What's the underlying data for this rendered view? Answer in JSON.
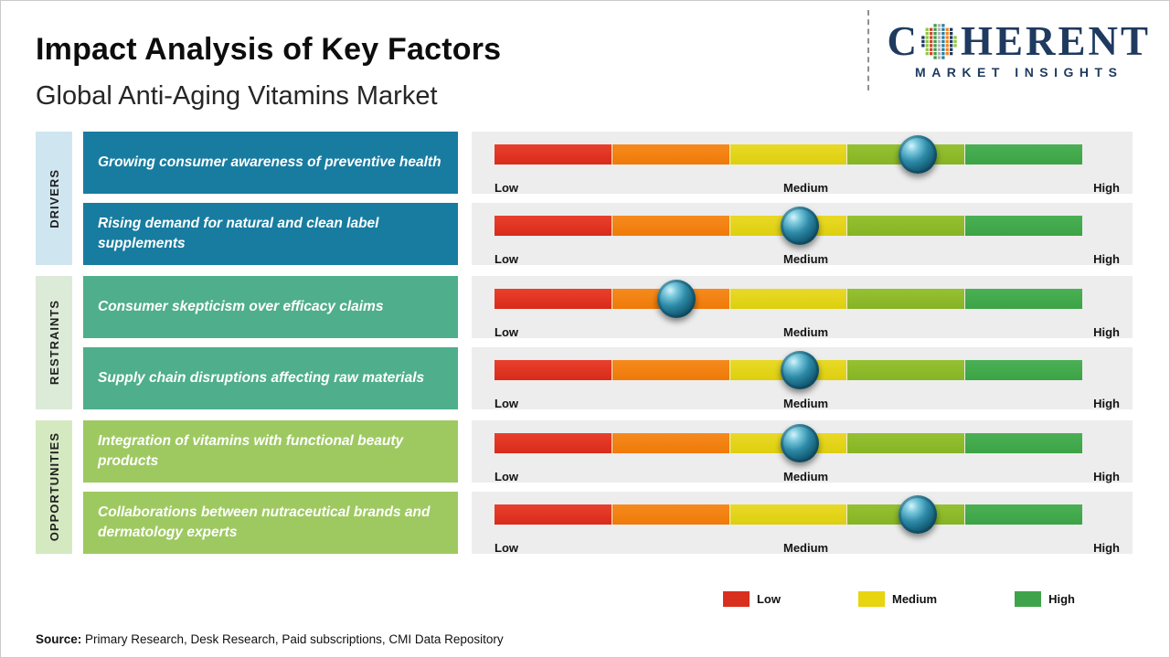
{
  "header": {
    "title": "Impact Analysis of Key Factors",
    "subtitle": "Global Anti-Aging Vitamins Market"
  },
  "logo": {
    "brand_c": "C",
    "brand_rest": "HERENT",
    "tagline": "MARKET INSIGHTS",
    "color": "#1f3a5f",
    "dot_colors": [
      "#1f3a5f",
      "#2a7fa5",
      "#3f9b48",
      "#8dc63f",
      "#f58220",
      "#aeb4b7",
      "#d0452b"
    ]
  },
  "categories": [
    {
      "label": "DRIVERS"
    },
    {
      "label": "RESTRAINTS"
    },
    {
      "label": "OPPORTUNITIES"
    }
  ],
  "scale": {
    "low": "Low",
    "medium": "Medium",
    "high": "High",
    "segment_colors": [
      "#d92b1a",
      "#ee7a08",
      "#ddcf0e",
      "#86b424",
      "#3ba345"
    ]
  },
  "rows": [
    {
      "category": "Drivers",
      "text": "Growing consumer awareness of preventive health",
      "marker_pct": 72
    },
    {
      "category": "Drivers",
      "text": "Rising demand for natural and clean label supplements",
      "marker_pct": 52
    },
    {
      "category": "Restraints",
      "text": "Consumer skepticism over efficacy claims",
      "marker_pct": 31
    },
    {
      "category": "Restraints",
      "text": "Supply chain disruptions affecting raw materials",
      "marker_pct": 52
    },
    {
      "category": "Opportunities",
      "text": "Integration of vitamins with functional beauty products",
      "marker_pct": 52
    },
    {
      "category": "Opportunities",
      "text": "Collaborations between nutraceutical brands and dermatology experts",
      "marker_pct": 72
    }
  ],
  "legend": [
    {
      "label": "Low",
      "color": "#d92f1e"
    },
    {
      "label": "Medium",
      "color": "#e8d40f"
    },
    {
      "label": "High",
      "color": "#3fa34b"
    }
  ],
  "source": {
    "prefix": "Source:",
    "text": " Primary Research, Desk Research, Paid subscriptions, CMI Data Repository"
  },
  "chart_data": {
    "type": "table",
    "title": "Impact Analysis of Key Factors",
    "subtitle": "Global Anti-Aging Vitamins Market",
    "scale_labels": [
      "Low",
      "Medium",
      "High"
    ],
    "legend": [
      "Low",
      "Medium",
      "High"
    ],
    "rows": [
      {
        "category": "Drivers",
        "factor": "Growing consumer awareness of preventive health",
        "impact_pct": 72,
        "impact": "Medium-High"
      },
      {
        "category": "Drivers",
        "factor": "Rising demand for natural and clean label supplements",
        "impact_pct": 52,
        "impact": "Medium"
      },
      {
        "category": "Restraints",
        "factor": "Consumer skepticism over efficacy claims",
        "impact_pct": 31,
        "impact": "Low-Medium"
      },
      {
        "category": "Restraints",
        "factor": "Supply chain disruptions affecting raw materials",
        "impact_pct": 52,
        "impact": "Medium"
      },
      {
        "category": "Opportunities",
        "factor": "Integration of vitamins with functional beauty products",
        "impact_pct": 52,
        "impact": "Medium"
      },
      {
        "category": "Opportunities",
        "factor": "Collaborations between nutraceutical brands and dermatology experts",
        "impact_pct": 72,
        "impact": "Medium-High"
      }
    ]
  }
}
